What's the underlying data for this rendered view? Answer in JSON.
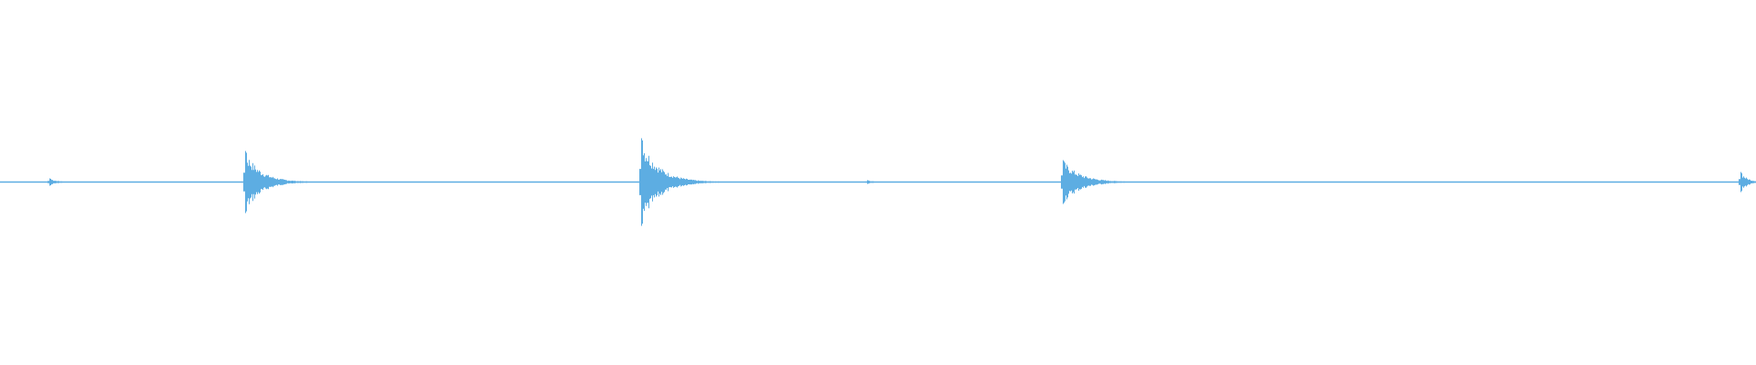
{
  "chart_data": {
    "type": "area",
    "title": "",
    "xlabel": "",
    "ylabel": "",
    "ylim": [
      -1,
      1
    ],
    "grid": false,
    "color": "#5dade2",
    "baseline_amplitude": 0.004,
    "events": [
      {
        "time_fraction": 0.028,
        "peak": 0.02,
        "decay": 0.004
      },
      {
        "time_fraction": 0.1396,
        "peak": 0.17,
        "decay": 0.009
      },
      {
        "time_fraction": 0.3651,
        "peak": 0.24,
        "decay": 0.01
      },
      {
        "time_fraction": 0.4935,
        "peak": 0.01,
        "decay": 0.004
      },
      {
        "time_fraction": 0.6052,
        "peak": 0.12,
        "decay": 0.01
      },
      {
        "time_fraction": 0.9911,
        "peak": 0.055,
        "decay": 0.004
      }
    ]
  }
}
